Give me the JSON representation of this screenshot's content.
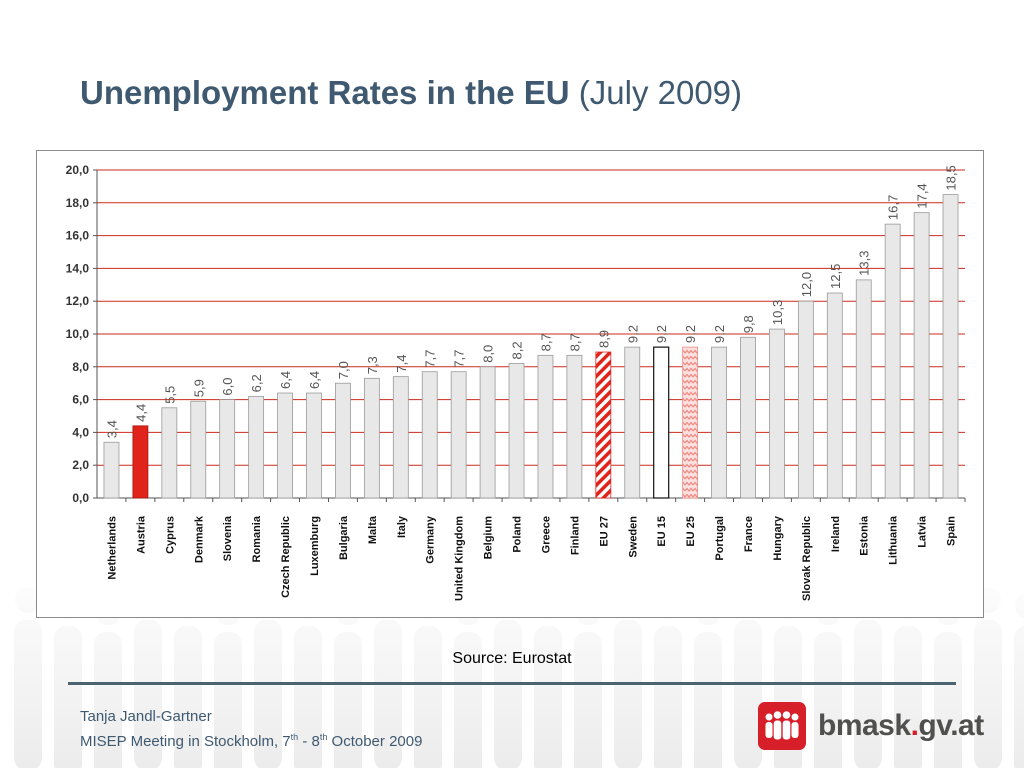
{
  "slide": {
    "title_main": "Unemployment Rates in the EU",
    "title_sub": "(July 2009)",
    "source": "Source: Eurostat",
    "author_line1": "Tanja Jandl-Gartner",
    "author_line2_a": "MISEP Meeting in Stockholm, 7",
    "author_sup1": "th",
    "author_line2_b": " - 8",
    "author_sup2": "th",
    "author_line2_c": " October 2009",
    "logo_name": "bmask",
    "logo_dot": ".",
    "logo_tld": "gv.at"
  },
  "colors": {
    "title": "#3f5a70",
    "bar_default": "#e8e8e8",
    "bar_highlight": "#e0231b",
    "bar_eu_hatch": "#e0231b",
    "bar_eu25_zigzag": "#f08a84",
    "gridline": "#cc2a1e",
    "logo_red": "#d71f2a"
  },
  "chart_data": {
    "type": "bar",
    "title": "",
    "xlabel": "",
    "ylabel": "",
    "ylim": [
      0,
      20
    ],
    "y_ticks": [
      "0,0",
      "2,0",
      "4,0",
      "6,0",
      "8,0",
      "10,0",
      "12,0",
      "14,0",
      "16,0",
      "18,0",
      "20,0"
    ],
    "grid": true,
    "categories": [
      "Netherlands",
      "Austria",
      "Cyprus",
      "Denmark",
      "Slovenia",
      "Romania",
      "Czech Republic",
      "Luxemburg",
      "Bulgaria",
      "Malta",
      "Italy",
      "Germany",
      "United Kingdom",
      "Belgium",
      "Poland",
      "Greece",
      "Finland",
      "EU 27",
      "Sweden",
      "EU 15",
      "EU 25",
      "Portugal",
      "France",
      "Hungary",
      "Slovak Republic",
      "Ireland",
      "Estonia",
      "Lithuania",
      "Latvia",
      "Spain"
    ],
    "values": [
      3.4,
      4.4,
      5.5,
      5.9,
      6.0,
      6.2,
      6.4,
      6.4,
      7.0,
      7.3,
      7.4,
      7.7,
      7.7,
      8.0,
      8.2,
      8.7,
      8.7,
      8.9,
      9.2,
      9.2,
      9.2,
      9.2,
      9.8,
      10.3,
      12.0,
      12.5,
      13.3,
      16.7,
      17.4,
      18.5
    ],
    "value_labels": [
      "3,4",
      "4,4",
      "5,5",
      "5,9",
      "6,0",
      "6,2",
      "6,4",
      "6,4",
      "7,0",
      "7,3",
      "7,4",
      "7,7",
      "7,7",
      "8,0",
      "8,2",
      "8,7",
      "8,7",
      "8,9",
      "9,2",
      "9,2",
      "9,2",
      "9,2",
      "9,8",
      "10,3",
      "12,0",
      "12,5",
      "13,3",
      "16,7",
      "17,4",
      "18,5"
    ],
    "bar_styles": [
      "plain",
      "highlight",
      "plain",
      "plain",
      "plain",
      "plain",
      "plain",
      "plain",
      "plain",
      "plain",
      "plain",
      "plain",
      "plain",
      "plain",
      "plain",
      "plain",
      "plain",
      "hatch",
      "plain",
      "outline",
      "zigzag",
      "plain",
      "plain",
      "plain",
      "plain",
      "plain",
      "plain",
      "plain",
      "plain",
      "plain"
    ]
  }
}
